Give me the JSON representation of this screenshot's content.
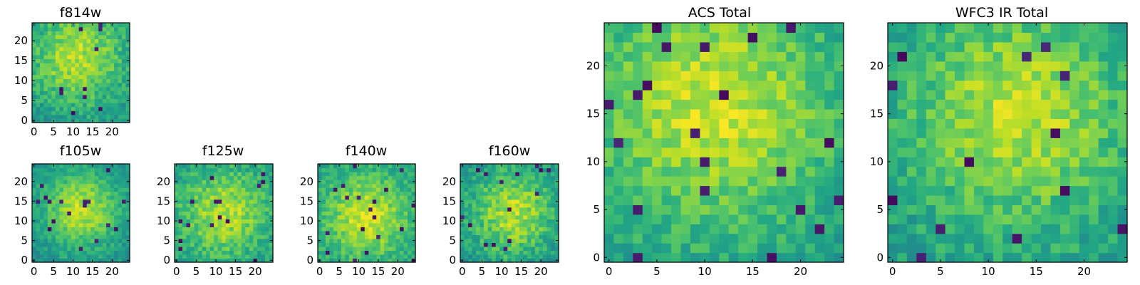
{
  "figure": {
    "colormap": "viridis",
    "background": "#ffffff"
  },
  "chart_data": [
    {
      "type": "heatmap",
      "title": "f814w",
      "xlabel": "",
      "ylabel": "",
      "xlim": [
        0,
        25
      ],
      "ylim": [
        0,
        25
      ],
      "x_ticks": [
        "0",
        "5",
        "10",
        "15",
        "20"
      ],
      "y_ticks": [
        "0",
        "5",
        "10",
        "15",
        "20"
      ],
      "grid_size": [
        25,
        25
      ],
      "colormap": "viridis",
      "pattern": {
        "center": [
          11,
          16
        ],
        "peak": 0.88,
        "edge": 0.5,
        "sigma": 9,
        "noise": 0.22,
        "seed": 11
      }
    },
    {
      "type": "heatmap",
      "title": "f105w",
      "xlabel": "",
      "ylabel": "",
      "xlim": [
        0,
        25
      ],
      "ylim": [
        0,
        25
      ],
      "x_ticks": [
        "0",
        "5",
        "10",
        "15",
        "20"
      ],
      "y_ticks": [
        "0",
        "5",
        "10",
        "15",
        "20"
      ],
      "grid_size": [
        25,
        25
      ],
      "colormap": "viridis",
      "pattern": {
        "center": [
          12,
          13
        ],
        "peak": 0.9,
        "edge": 0.5,
        "sigma": 7,
        "noise": 0.18,
        "seed": 23
      }
    },
    {
      "type": "heatmap",
      "title": "f125w",
      "xlabel": "",
      "ylabel": "",
      "xlim": [
        0,
        25
      ],
      "ylim": [
        0,
        25
      ],
      "x_ticks": [
        "0",
        "5",
        "10",
        "15",
        "20"
      ],
      "y_ticks": [
        "0",
        "5",
        "10",
        "15",
        "20"
      ],
      "grid_size": [
        25,
        25
      ],
      "colormap": "viridis",
      "pattern": {
        "center": [
          12,
          12
        ],
        "peak": 0.88,
        "edge": 0.55,
        "sigma": 8,
        "noise": 0.22,
        "seed": 37
      }
    },
    {
      "type": "heatmap",
      "title": "f140w",
      "xlabel": "",
      "ylabel": "",
      "xlim": [
        0,
        25
      ],
      "ylim": [
        0,
        25
      ],
      "x_ticks": [
        "0",
        "5",
        "10",
        "15",
        "20"
      ],
      "y_ticks": [
        "0",
        "5",
        "10",
        "15",
        "20"
      ],
      "grid_size": [
        25,
        25
      ],
      "colormap": "viridis",
      "pattern": {
        "center": [
          12,
          11
        ],
        "peak": 0.92,
        "edge": 0.55,
        "sigma": 8,
        "noise": 0.2,
        "seed": 41
      }
    },
    {
      "type": "heatmap",
      "title": "f160w",
      "xlabel": "",
      "ylabel": "",
      "xlim": [
        0,
        25
      ],
      "ylim": [
        0,
        25
      ],
      "x_ticks": [
        "0",
        "5",
        "10",
        "15",
        "20"
      ],
      "y_ticks": [
        "0",
        "5",
        "10",
        "15",
        "20"
      ],
      "grid_size": [
        25,
        25
      ],
      "colormap": "viridis",
      "pattern": {
        "center": [
          13,
          12
        ],
        "peak": 0.88,
        "edge": 0.5,
        "sigma": 8,
        "noise": 0.24,
        "seed": 53
      }
    },
    {
      "type": "heatmap",
      "title": "ACS Total",
      "xlabel": "",
      "ylabel": "",
      "xlim": [
        0,
        25
      ],
      "ylim": [
        0,
        25
      ],
      "x_ticks": [
        "0",
        "5",
        "10",
        "15",
        "20"
      ],
      "y_ticks": [
        "0",
        "5",
        "10",
        "15",
        "20"
      ],
      "grid_size": [
        25,
        25
      ],
      "colormap": "viridis",
      "pattern": {
        "center": [
          11,
          16
        ],
        "peak": 0.92,
        "edge": 0.55,
        "sigma": 9,
        "noise": 0.2,
        "seed": 67
      }
    },
    {
      "type": "heatmap",
      "title": "WFC3 IR Total",
      "xlabel": "",
      "ylabel": "",
      "xlim": [
        0,
        25
      ],
      "ylim": [
        0,
        25
      ],
      "x_ticks": [
        "0",
        "5",
        "10",
        "15",
        "20"
      ],
      "y_ticks": [
        "0",
        "5",
        "10",
        "15",
        "20"
      ],
      "grid_size": [
        25,
        25
      ],
      "colormap": "viridis",
      "pattern": {
        "center": [
          13,
          15
        ],
        "peak": 0.9,
        "edge": 0.55,
        "sigma": 8,
        "noise": 0.22,
        "seed": 79
      }
    }
  ]
}
